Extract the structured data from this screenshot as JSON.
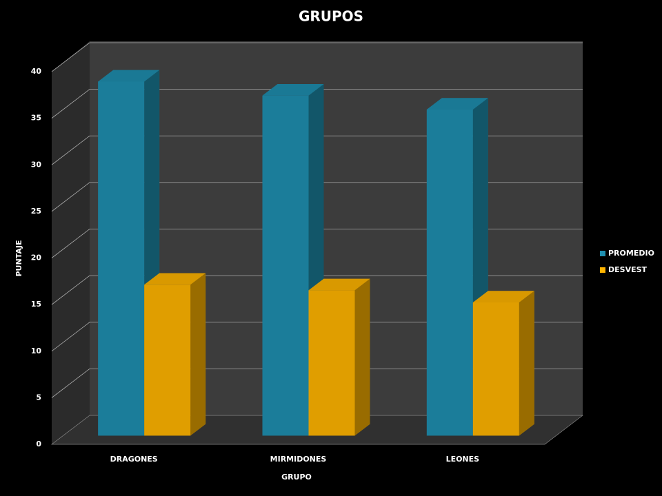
{
  "chart_data": {
    "type": "bar3d",
    "title": "GRUPOS",
    "x_label": "GRUPO",
    "y_label": "PUNTAJE",
    "categories": [
      "DRAGONES",
      "MIRMIDONES",
      "LEONES"
    ],
    "series": [
      {
        "name": "PROMEDIO",
        "color": "#1f8fb0",
        "values": [
          38,
          36.5,
          35
        ]
      },
      {
        "name": "DESVEST",
        "color": "#ffb400",
        "values": [
          16.2,
          15.6,
          14.3
        ]
      }
    ],
    "ylim": [
      0,
      40
    ],
    "yticks": [
      0,
      5,
      10,
      15,
      20,
      25,
      30,
      35,
      40
    ],
    "grid": true,
    "legend": "right"
  }
}
